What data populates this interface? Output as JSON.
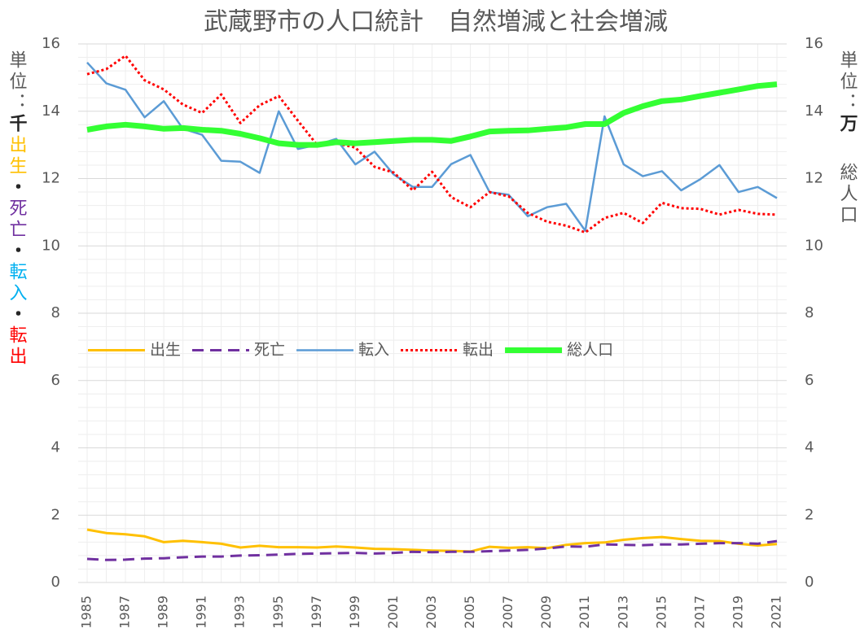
{
  "chart_data": {
    "type": "line",
    "title": "武蔵野市の人口統計　自然増減と社会増減",
    "ylabel_parts": [
      {
        "text": "単位：",
        "color": "#595959"
      },
      {
        "text": "千",
        "color": "#262626"
      },
      {
        "text": "出生",
        "color": "#FFC000"
      },
      {
        "text": "・",
        "color": "#262626"
      },
      {
        "text": "死亡",
        "color": "#7030A0"
      },
      {
        "text": "・",
        "color": "#262626"
      },
      {
        "text": "転入",
        "color": "#00B0F0"
      },
      {
        "text": "・",
        "color": "#262626"
      },
      {
        "text": "転出",
        "color": "#FF0000"
      }
    ],
    "y2label_parts": [
      {
        "text": "単位：",
        "color": "#595959"
      },
      {
        "text": "万",
        "color": "#262626"
      }
    ],
    "y2label_name": {
      "text": "総人口",
      "color": "#33EE33"
    },
    "categories": [
      "1985",
      null,
      "1987",
      null,
      "1989",
      null,
      "1991",
      null,
      "1993",
      null,
      "1995",
      null,
      "1997",
      null,
      "1999",
      null,
      "2001",
      null,
      "2003",
      null,
      "2005",
      null,
      "2007",
      null,
      "2009",
      null,
      "2011",
      null,
      "2013",
      null,
      "2015",
      null,
      "2017",
      null,
      "2019",
      null,
      "2021"
    ],
    "series": [
      {
        "name": "出生",
        "color": "#FFC000",
        "dash": "solid",
        "width": 3,
        "values": [
          1.57,
          1.47,
          1.43,
          1.37,
          1.2,
          1.24,
          1.2,
          1.15,
          1.04,
          1.09,
          1.05,
          1.05,
          1.04,
          1.07,
          1.04,
          1.0,
          0.99,
          0.97,
          0.95,
          0.94,
          0.92,
          1.06,
          1.03,
          1.05,
          1.02,
          1.12,
          1.17,
          1.19,
          1.27,
          1.32,
          1.35,
          1.29,
          1.24,
          1.23,
          1.15,
          1.1,
          1.14
        ]
      },
      {
        "name": "死亡",
        "color": "#7030A0",
        "dash": "dashed",
        "width": 3,
        "values": [
          0.7,
          0.67,
          0.68,
          0.71,
          0.72,
          0.75,
          0.77,
          0.77,
          0.8,
          0.81,
          0.83,
          0.85,
          0.86,
          0.87,
          0.88,
          0.86,
          0.88,
          0.91,
          0.9,
          0.91,
          0.91,
          0.93,
          0.95,
          0.97,
          1.01,
          1.07,
          1.06,
          1.13,
          1.12,
          1.11,
          1.13,
          1.13,
          1.15,
          1.17,
          1.17,
          1.15,
          1.23
        ]
      },
      {
        "name": "転入",
        "color": "#5B9BD5",
        "dash": "solid",
        "width": 2.5,
        "values": [
          15.45,
          14.83,
          14.64,
          13.82,
          14.3,
          13.48,
          13.3,
          12.53,
          12.5,
          12.17,
          14.0,
          12.88,
          13.0,
          13.18,
          12.42,
          12.8,
          12.12,
          11.75,
          11.75,
          12.43,
          12.7,
          11.6,
          11.52,
          10.88,
          11.15,
          11.25,
          10.45,
          13.85,
          12.42,
          12.07,
          12.22,
          11.65,
          11.98,
          12.4,
          11.6,
          11.75,
          11.42
        ]
      },
      {
        "name": "転出",
        "color": "#FF0000",
        "dash": "dotted",
        "width": 3,
        "values": [
          15.1,
          15.25,
          15.65,
          14.92,
          14.65,
          14.2,
          13.95,
          14.5,
          13.65,
          14.18,
          14.45,
          13.72,
          13.0,
          13.05,
          12.92,
          12.35,
          12.18,
          11.65,
          12.2,
          11.45,
          11.15,
          11.6,
          11.47,
          10.98,
          10.72,
          10.6,
          10.4,
          10.83,
          10.98,
          10.68,
          11.28,
          11.12,
          11.1,
          10.93,
          11.07,
          10.95,
          10.93
        ]
      },
      {
        "name": "総人口",
        "color": "#33FF33",
        "dash": "solid",
        "width": 7,
        "axis": "y2",
        "values": [
          13.45,
          13.55,
          13.6,
          13.55,
          13.48,
          13.5,
          13.45,
          13.42,
          13.33,
          13.2,
          13.05,
          13.0,
          13.0,
          13.08,
          13.05,
          13.08,
          13.12,
          13.15,
          13.15,
          13.12,
          13.25,
          13.4,
          13.42,
          13.43,
          13.48,
          13.52,
          13.62,
          13.62,
          13.95,
          14.15,
          14.3,
          14.35,
          14.45,
          14.55,
          14.65,
          14.75,
          14.8
        ]
      }
    ],
    "ylim": [
      0,
      16
    ],
    "yticks": [
      0,
      2,
      4,
      6,
      8,
      10,
      12,
      14,
      16
    ],
    "y2lim": [
      0,
      16
    ],
    "y2ticks": [
      0,
      2,
      4,
      6,
      8,
      10,
      12,
      14,
      16
    ],
    "grid": true,
    "minor_grid": true,
    "legend": "middle-left"
  }
}
